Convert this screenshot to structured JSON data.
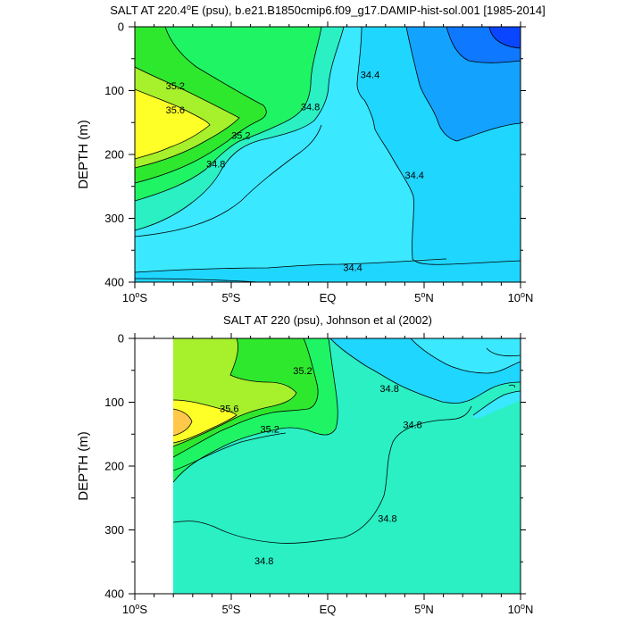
{
  "chart_data": [
    {
      "type": "contour",
      "title": "SALT AT 220.4°E (psu), b.e21.B1850cmip6.f09_g17.DAMIP-hist-sol.001 [1985-2014]",
      "title_parts": {
        "before_sup": "SALT AT 220.4",
        "sup": "o",
        "after_sup": "E (psu), b.e21.B1850cmip6.f09_g17.DAMIP-hist-sol.001 [1985-2014]"
      },
      "ylabel": "DEPTH (m)",
      "xlim": [
        -10,
        10
      ],
      "ylim": [
        0,
        400
      ],
      "y_reversed": true,
      "x_ticks": [
        {
          "value": -10,
          "num": "10",
          "hemi": "S"
        },
        {
          "value": -5,
          "num": "5",
          "hemi": "S"
        },
        {
          "value": 0,
          "num": "EQ",
          "hemi": ""
        },
        {
          "value": 5,
          "num": "5",
          "hemi": "N"
        },
        {
          "value": 10,
          "num": "10",
          "hemi": "N"
        }
      ],
      "y_ticks": [
        0,
        100,
        200,
        300,
        400
      ],
      "data_extent": {
        "x": [
          -10,
          10
        ],
        "y": [
          0,
          400
        ]
      },
      "contour_labels": [
        {
          "text": "35.2",
          "x": -7.9,
          "y": 92
        },
        {
          "text": "35.6",
          "x": -7.9,
          "y": 130
        },
        {
          "text": "35.2",
          "x": -4.5,
          "y": 170
        },
        {
          "text": "34.8",
          "x": -5.8,
          "y": 215
        },
        {
          "text": "34.8",
          "x": -0.9,
          "y": 125
        },
        {
          "text": "34.4",
          "x": 2.2,
          "y": 75
        },
        {
          "text": "34.4",
          "x": 4.5,
          "y": 232
        },
        {
          "text": "34.4",
          "x": 1.3,
          "y": 377
        }
      ]
    },
    {
      "type": "contour",
      "title": "SALT AT 220 (psu), Johnson et al (2002)",
      "ylabel": "DEPTH (m)",
      "xlim": [
        -10,
        10
      ],
      "ylim": [
        0,
        400
      ],
      "y_reversed": true,
      "x_ticks": [
        {
          "value": -10,
          "num": "10",
          "hemi": "S"
        },
        {
          "value": -5,
          "num": "5",
          "hemi": "S"
        },
        {
          "value": 0,
          "num": "EQ",
          "hemi": ""
        },
        {
          "value": 5,
          "num": "5",
          "hemi": "N"
        },
        {
          "value": 10,
          "num": "10",
          "hemi": "N"
        }
      ],
      "y_ticks": [
        0,
        100,
        200,
        300,
        400
      ],
      "data_extent": {
        "x": [
          -8,
          10
        ],
        "y": [
          0,
          400
        ]
      },
      "contour_labels": [
        {
          "text": "35.2",
          "x": -1.3,
          "y": 50
        },
        {
          "text": "35.6",
          "x": -5.1,
          "y": 110
        },
        {
          "text": "35.2",
          "x": -3.0,
          "y": 142
        },
        {
          "text": "34.8",
          "x": 3.2,
          "y": 78
        },
        {
          "text": "34.8",
          "x": 4.4,
          "y": 135
        },
        {
          "text": "34.8",
          "x": 3.1,
          "y": 282
        },
        {
          "text": "34.8",
          "x": -3.3,
          "y": 348
        }
      ]
    }
  ],
  "fill_colors": {
    "le_34_0": "#0a46ff",
    "le_34_2": "#0e78ff",
    "le_34_4": "#14a2ff",
    "le_34_6": "#1fd6ff",
    "le_34_8": "#3ae8ff",
    "b34_8_35_0": "#2af0c4",
    "b35_0_35_2": "#1ff564",
    "b35_2_35_4": "#2ee82e",
    "b35_4_35_6": "#a6f02c",
    "b35_6_35_8": "#ffff28",
    "gt_35_8": "#ffc84a"
  }
}
